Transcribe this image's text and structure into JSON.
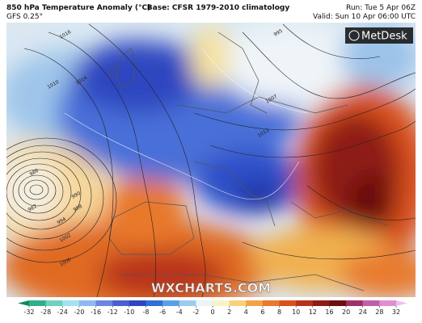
{
  "header": {
    "title": "850 hPa Temperature Anomaly (°C)",
    "model": "GFS 0.25°",
    "base": "Base: CFSR 1979-2010 climatology",
    "run": "Run: Tue 5 Apr 06Z",
    "valid": "Valid: Sun 10 Apr 06:00 UTC"
  },
  "logo": "MetDesk",
  "watermark": "WXCHARTS.COM",
  "isobar_labels": [
    "1016",
    "1010",
    "1014",
    "998",
    "994",
    "990",
    "986",
    "982",
    "1002",
    "1006",
    "1013",
    "1007",
    "995"
  ],
  "colorbar": {
    "ticks": [
      -32,
      -28,
      -24,
      -20,
      -16,
      -12,
      -10,
      -8,
      -6,
      -4,
      -2,
      0,
      2,
      4,
      6,
      8,
      10,
      12,
      16,
      20,
      24,
      28,
      32
    ],
    "colors": [
      "#0f8a5a",
      "#2fb08a",
      "#6fd0c0",
      "#a3e2ef",
      "#8fb8f0",
      "#6a86e2",
      "#4a5fd0",
      "#2f46c0",
      "#2f6fd6",
      "#5aa0e6",
      "#9ccbee",
      "#e9f3f8",
      "#fbf3c8",
      "#f7d27a",
      "#f2a34a",
      "#e87a2e",
      "#d9511e",
      "#b8321a",
      "#8e1c16",
      "#6a1010",
      "#a0306a",
      "#c060a8",
      "#e090d0",
      "#f0c0e8"
    ]
  }
}
